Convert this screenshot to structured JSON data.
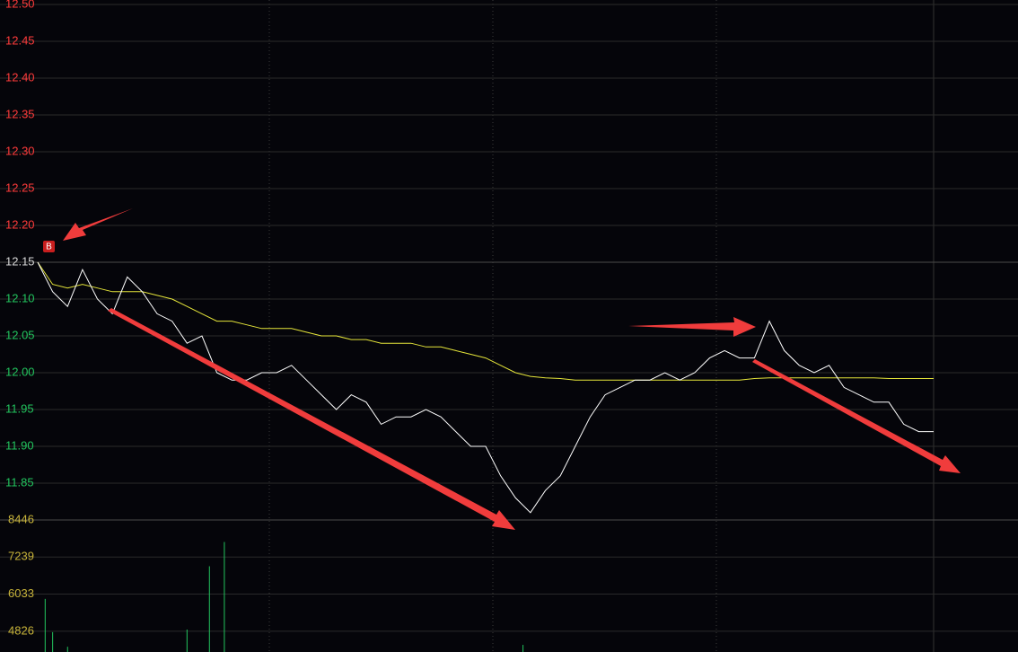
{
  "chart_data": {
    "type": "intraday",
    "base": 12.15,
    "up_color": "#ff3b3b",
    "down_color": "#22c55e",
    "base_color": "#d8d8d8",
    "grid": true,
    "marker": "B",
    "xlim": [
      0,
      120
    ],
    "x": [
      0,
      2,
      4,
      6,
      8,
      10,
      12,
      14,
      16,
      18,
      20,
      22,
      24,
      26,
      28,
      30,
      32,
      34,
      36,
      38,
      40,
      42,
      44,
      46,
      48,
      50,
      52,
      54,
      56,
      58,
      60,
      62,
      64,
      66,
      68,
      70,
      72,
      74,
      76,
      78,
      80,
      82,
      84,
      86,
      88,
      90,
      92,
      94,
      96,
      98,
      100,
      102,
      104,
      106,
      108,
      110,
      112,
      114,
      116,
      118,
      120
    ],
    "ylim": [
      11.8,
      12.5
    ],
    "yticks": [
      {
        "value": 12.5,
        "label": "12.50"
      },
      {
        "value": 12.45,
        "label": "12.45"
      },
      {
        "value": 12.4,
        "label": "12.40"
      },
      {
        "value": 12.35,
        "label": "12.35"
      },
      {
        "value": 12.3,
        "label": "12.30"
      },
      {
        "value": 12.25,
        "label": "12.25"
      },
      {
        "value": 12.2,
        "label": "12.20"
      },
      {
        "value": 12.15,
        "label": "12.15"
      },
      {
        "value": 12.1,
        "label": "12.10"
      },
      {
        "value": 12.05,
        "label": "12.05"
      },
      {
        "value": 12,
        "label": "12.00"
      },
      {
        "value": 11.95,
        "label": "11.95"
      },
      {
        "value": 11.9,
        "label": "11.90"
      },
      {
        "value": 11.85,
        "label": "11.85"
      }
    ],
    "series": [
      {
        "name": "price",
        "color": "#ffffff",
        "values": [
          12.15,
          12.11,
          12.09,
          12.14,
          12.1,
          12.08,
          12.13,
          12.11,
          12.08,
          12.07,
          12.04,
          12.05,
          12.0,
          11.99,
          11.99,
          12.0,
          12.0,
          12.01,
          11.99,
          11.97,
          11.95,
          11.97,
          11.96,
          11.93,
          11.94,
          11.94,
          11.95,
          11.94,
          11.92,
          11.9,
          11.9,
          11.86,
          11.83,
          11.81,
          11.84,
          11.86,
          11.9,
          11.94,
          11.97,
          11.98,
          11.99,
          11.99,
          12.0,
          11.99,
          12.0,
          12.02,
          12.03,
          12.02,
          12.02,
          12.07,
          12.03,
          12.01,
          12.0,
          12.01,
          11.98,
          11.97,
          11.96,
          11.96,
          11.93,
          11.92,
          11.92
        ]
      },
      {
        "name": "average",
        "color": "#e6e63a",
        "values": [
          12.15,
          12.12,
          12.115,
          12.12,
          12.115,
          12.11,
          12.11,
          12.11,
          12.105,
          12.1,
          12.09,
          12.08,
          12.07,
          12.07,
          12.065,
          12.06,
          12.06,
          12.06,
          12.055,
          12.05,
          12.05,
          12.045,
          12.045,
          12.04,
          12.04,
          12.04,
          12.035,
          12.035,
          12.03,
          12.025,
          12.02,
          12.01,
          12.0,
          11.995,
          11.993,
          11.992,
          11.99,
          11.99,
          11.99,
          11.99,
          11.99,
          11.99,
          11.99,
          11.99,
          11.99,
          11.99,
          11.99,
          11.99,
          11.992,
          11.993,
          11.993,
          11.993,
          11.993,
          11.993,
          11.993,
          11.993,
          11.993,
          11.992,
          11.992,
          11.992,
          11.992
        ]
      }
    ],
    "volume": {
      "color": "#22c55e",
      "tick_color": "#c8b43a",
      "x": [
        1,
        2,
        4,
        20,
        23,
        25,
        65
      ],
      "values": [
        5878,
        4796,
        4320,
        4880,
        6940,
        7730,
        4380
      ],
      "ylim": [
        4149,
        8446
      ],
      "yticks": [
        8446,
        7239,
        6033,
        4826
      ]
    }
  }
}
